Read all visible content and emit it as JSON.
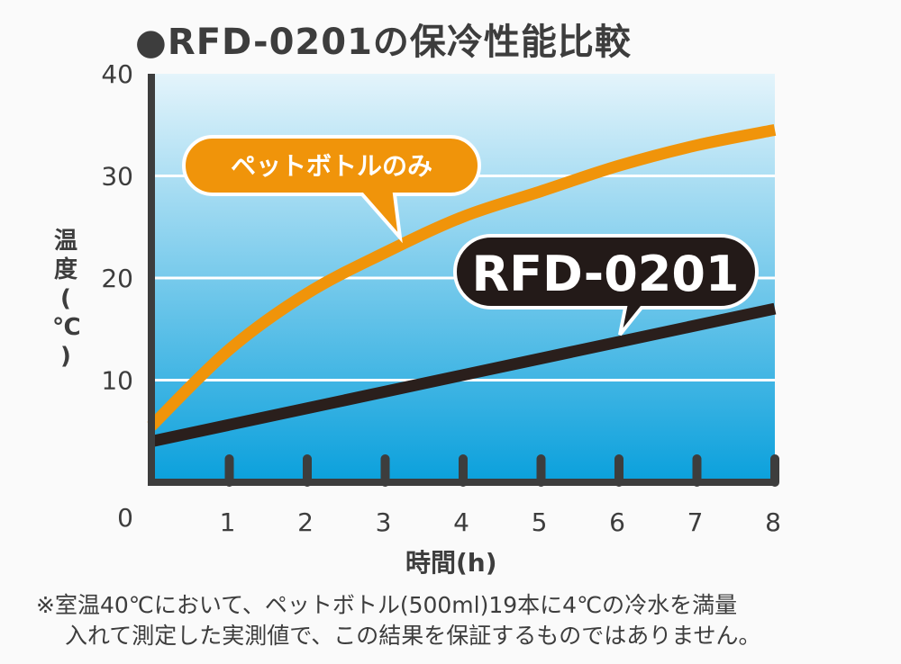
{
  "chart_data": {
    "type": "line",
    "title": "●RFD-0201の保冷性能比較",
    "xlabel": "時間(h)",
    "ylabel": [
      "温",
      "度",
      "(",
      "℃",
      ")"
    ],
    "xlim": [
      0,
      8
    ],
    "ylim": [
      0,
      40
    ],
    "x_ticks": [
      "1",
      "2",
      "3",
      "4",
      "5",
      "6",
      "7",
      "8"
    ],
    "y_ticks": [
      "0",
      "10",
      "20",
      "30",
      "40"
    ],
    "grid": true,
    "series": [
      {
        "name": "ペットボトルのみ",
        "color": "#f0940a",
        "x": [
          0,
          1,
          2,
          3,
          4,
          5,
          6,
          7,
          8
        ],
        "y": [
          5.5,
          13,
          18.5,
          22.5,
          26,
          28.5,
          31,
          33,
          34.5
        ]
      },
      {
        "name": "RFD-0201",
        "color": "#2a1f1c",
        "x": [
          0,
          8
        ],
        "y": [
          4,
          17
        ]
      }
    ]
  },
  "note": {
    "line1": "※室温40℃において、ペットボトル(500ml)19本に4℃の冷水を満量",
    "line2": "入れて測定した実測値で、この結果を保証するものではありません。"
  },
  "colors": {
    "plot_top": "#e4f4fb",
    "plot_bottom": "#0aa0dc",
    "axis": "#3d3d3d"
  }
}
